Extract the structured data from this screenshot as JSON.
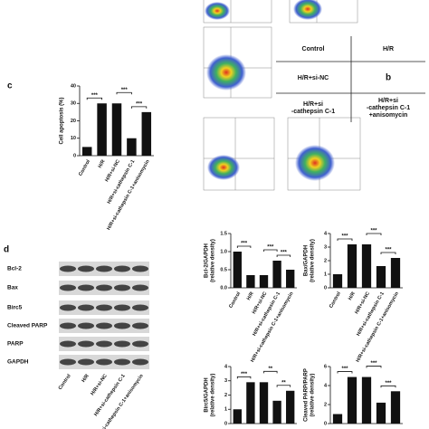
{
  "panel_labels": [
    "c",
    "d"
  ],
  "legend_table": {
    "rows": [
      [
        [
          "Control"
        ],
        [
          "H/R"
        ]
      ],
      [
        [
          "H/R+si-NC"
        ],
        [
          "b"
        ]
      ],
      [
        [
          "H/R+si",
          "-cathepsin C-1"
        ],
        [
          "H/R+si",
          "-cathepsin C-1",
          "+anisomycin"
        ]
      ]
    ]
  },
  "blot": {
    "labels": [
      "Bcl-2",
      "Bax",
      "Birc5",
      "Cleaved PARP",
      "PARP",
      "GAPDH"
    ],
    "categories": [
      "Control",
      "H/R",
      "H/R+si-NC",
      "H/R+si-cathepsin C-1",
      "H/R+si-cathepsin C-1+anisomycin"
    ]
  },
  "chart_data": [
    {
      "type": "bar",
      "ylabel": [
        "Cell apoptosis (%)"
      ],
      "categories": [
        "Control",
        "H/R",
        "H/R+si-NC",
        "H/R+si-cathepsin C-1",
        "H/R+si-cathepsin C-1+anisomycin"
      ],
      "values": [
        5,
        30,
        30,
        10,
        25
      ],
      "color": "#111111",
      "ylim": [
        0,
        40
      ],
      "yticks": [
        0,
        10,
        20,
        30,
        40
      ],
      "annotations": [
        "***",
        "***",
        "***"
      ]
    },
    {
      "type": "bar",
      "ylabel": [
        "Bcl-2/GAPDH",
        "(relative density)"
      ],
      "categories": [
        "Control",
        "H/R",
        "H/R+si-NC",
        "H/R+si-cathepsin C-1",
        "H/R+si-cathepsin C-1+anisomycin"
      ],
      "values": [
        1.0,
        0.35,
        0.35,
        0.75,
        0.5
      ],
      "color": "#111111",
      "ylim": [
        0,
        1.5
      ],
      "yticks": [
        {
          "value": 0,
          "label": "0.0"
        },
        {
          "value": 0.5,
          "label": "0.5"
        },
        {
          "value": 1,
          "label": "1.0"
        },
        {
          "value": 1.5,
          "label": "1.5"
        }
      ],
      "annotations": [
        "***",
        "***",
        "***"
      ]
    },
    {
      "type": "bar",
      "ylabel": [
        "Bax/GAPDH",
        "(relative density)"
      ],
      "categories": [
        "Control",
        "H/R",
        "H/R+si-NC",
        "H/R+si-cathepsin C-1",
        "H/R+si-cathepsin C-1+anisomycin"
      ],
      "values": [
        1.0,
        3.2,
        3.2,
        1.6,
        2.2
      ],
      "color": "#111111",
      "ylim": [
        0,
        4
      ],
      "yticks": [
        0,
        1,
        2,
        3,
        4
      ],
      "annotations": [
        "***",
        "***",
        "***"
      ]
    },
    {
      "type": "bar",
      "ylabel": [
        "Birc5/GAPDH",
        "(relative density)"
      ],
      "categories": [
        null,
        null,
        null,
        null,
        null
      ],
      "values": [
        1.0,
        2.9,
        2.9,
        1.6,
        2.3
      ],
      "color": "#111111",
      "ylim": [
        0,
        4
      ],
      "yticks": [
        0,
        1,
        2,
        3,
        4
      ],
      "annotations": [
        "***",
        "**",
        "**"
      ]
    },
    {
      "type": "bar",
      "ylabel": [
        "Cleaved PARP/PARP",
        "(relative density)"
      ],
      "categories": [
        null,
        null,
        null,
        null,
        null
      ],
      "values": [
        1.0,
        4.9,
        4.9,
        2.2,
        3.4
      ],
      "color": "#111111",
      "ylim": [
        0,
        6
      ],
      "yticks": [
        0,
        2,
        4,
        6
      ],
      "annotations": [
        "***",
        "***",
        "***"
      ]
    }
  ]
}
